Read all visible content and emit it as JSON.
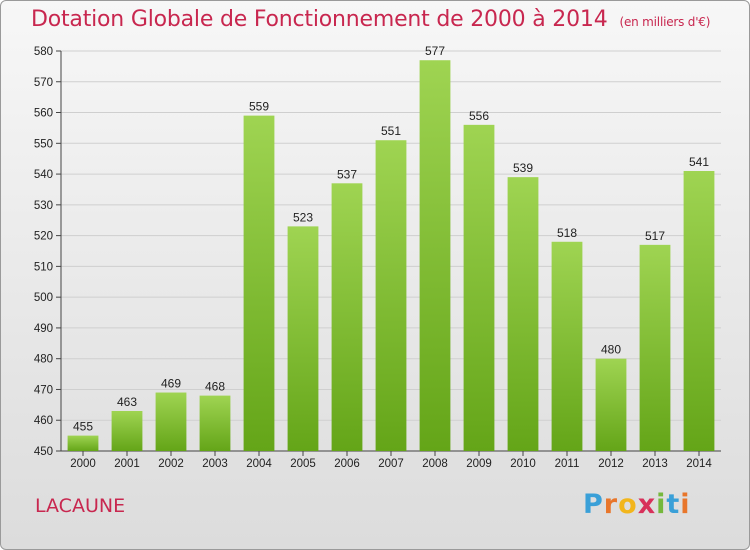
{
  "chart_data": {
    "type": "bar",
    "title": "Dotation Globale de Fonctionnement de 2000 à 2014",
    "subtitle": "(en milliers d'€)",
    "categories": [
      "2000",
      "2001",
      "2002",
      "2003",
      "2004",
      "2005",
      "2006",
      "2007",
      "2008",
      "2009",
      "2010",
      "2011",
      "2012",
      "2013",
      "2014"
    ],
    "values": [
      455,
      463,
      469,
      468,
      559,
      523,
      537,
      551,
      577,
      556,
      539,
      518,
      480,
      517,
      541
    ],
    "ylim": [
      450,
      580
    ],
    "yticks": [
      450,
      460,
      470,
      480,
      490,
      500,
      510,
      520,
      530,
      540,
      550,
      560,
      570,
      580
    ],
    "xlabel": "",
    "ylabel": "",
    "grid": true,
    "bar_color": "#7cc230"
  },
  "place_label": "LACAUNE",
  "logo": {
    "letters": [
      "P",
      "r",
      "o",
      "x",
      "i",
      "t",
      "i"
    ],
    "colors": [
      "#3aa0d8",
      "#e8762b",
      "#f2b61c",
      "#d8315b",
      "#75b83c",
      "#3aa0d8",
      "#e8762b"
    ]
  }
}
